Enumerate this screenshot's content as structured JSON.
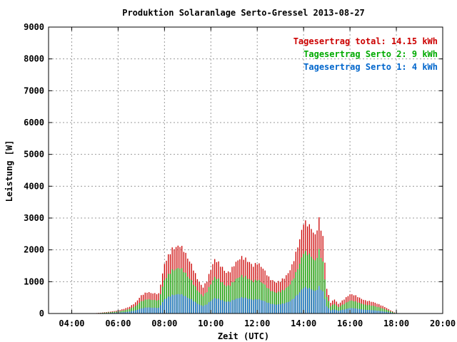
{
  "chart_data": {
    "type": "bar",
    "title": "Produktion Solaranlage Serto-Gressel 2013-08-27",
    "xlabel": "Zeit (UTC)",
    "ylabel": "Leistung [W]",
    "ylim": [
      0,
      9000
    ],
    "yticks": [
      "0",
      "1000",
      "2000",
      "3000",
      "4000",
      "5000",
      "6000",
      "7000",
      "8000",
      "9000"
    ],
    "xlim": [
      "03:00",
      "20:00"
    ],
    "xticks": [
      "04:00",
      "06:00",
      "08:00",
      "10:00",
      "12:00",
      "14:00",
      "16:00",
      "18:00",
      "20:00"
    ],
    "grid": true,
    "legend_position": "top-right",
    "legend": [
      {
        "text": "Tagesertrag total: 14.15 kWh",
        "color": "#cc0000"
      },
      {
        "text": "Tagesertrag Serto 2: 9 kWh",
        "color": "#00aa00"
      },
      {
        "text": "Tagesertrag Serto 1: 4 kWh",
        "color": "#0066cc"
      }
    ],
    "stacking": "overlaid bars per 5-minute interval (total behind, Serto 2 middle, Serto 1 front)",
    "series": [
      {
        "name": "Tagesertrag total: 14.15 kWh",
        "color": "#cc0000",
        "points": [
          [
            "05:00",
            10
          ],
          [
            "05:15",
            25
          ],
          [
            "05:30",
            45
          ],
          [
            "05:45",
            70
          ],
          [
            "06:00",
            100
          ],
          [
            "06:15",
            150
          ],
          [
            "06:30",
            220
          ],
          [
            "06:45",
            350
          ],
          [
            "07:00",
            580
          ],
          [
            "07:15",
            680
          ],
          [
            "07:30",
            640
          ],
          [
            "07:45",
            620
          ],
          [
            "08:00",
            1550
          ],
          [
            "08:10",
            1800
          ],
          [
            "08:20",
            2000
          ],
          [
            "08:30",
            2050
          ],
          [
            "08:40",
            2100
          ],
          [
            "08:50",
            1950
          ],
          [
            "09:00",
            1700
          ],
          [
            "09:10",
            1500
          ],
          [
            "09:20",
            1200
          ],
          [
            "09:30",
            950
          ],
          [
            "09:40",
            800
          ],
          [
            "09:50",
            1000
          ],
          [
            "10:00",
            1350
          ],
          [
            "10:10",
            1650
          ],
          [
            "10:20",
            1550
          ],
          [
            "10:30",
            1400
          ],
          [
            "10:40",
            1250
          ],
          [
            "10:50",
            1300
          ],
          [
            "11:00",
            1500
          ],
          [
            "11:10",
            1650
          ],
          [
            "11:20",
            1750
          ],
          [
            "11:30",
            1700
          ],
          [
            "11:40",
            1600
          ],
          [
            "11:50",
            1500
          ],
          [
            "12:00",
            1600
          ],
          [
            "12:10",
            1500
          ],
          [
            "12:20",
            1350
          ],
          [
            "12:30",
            1150
          ],
          [
            "12:40",
            1050
          ],
          [
            "12:50",
            1000
          ],
          [
            "13:00",
            1050
          ],
          [
            "13:10",
            1150
          ],
          [
            "13:20",
            1300
          ],
          [
            "13:30",
            1550
          ],
          [
            "13:40",
            1950
          ],
          [
            "13:50",
            2400
          ],
          [
            "14:00",
            2950
          ],
          [
            "14:10",
            2900
          ],
          [
            "14:20",
            2750
          ],
          [
            "14:30",
            2500
          ],
          [
            "14:40",
            3000
          ],
          [
            "14:50",
            2450
          ],
          [
            "15:00",
            800
          ],
          [
            "15:10",
            350
          ],
          [
            "15:20",
            450
          ],
          [
            "15:30",
            300
          ],
          [
            "15:40",
            400
          ],
          [
            "15:50",
            500
          ],
          [
            "16:00",
            600
          ],
          [
            "16:10",
            580
          ],
          [
            "16:20",
            520
          ],
          [
            "16:30",
            450
          ],
          [
            "16:40",
            400
          ],
          [
            "16:50",
            380
          ],
          [
            "17:00",
            350
          ],
          [
            "17:15",
            280
          ],
          [
            "17:30",
            200
          ],
          [
            "17:45",
            100
          ],
          [
            "18:00",
            0
          ]
        ]
      },
      {
        "name": "Tagesertrag Serto 2: 9 kWh",
        "color": "#00aa00",
        "points": [
          [
            "05:00",
            7
          ],
          [
            "05:15",
            17
          ],
          [
            "05:30",
            30
          ],
          [
            "05:45",
            47
          ],
          [
            "06:00",
            67
          ],
          [
            "06:15",
            100
          ],
          [
            "06:30",
            147
          ],
          [
            "06:45",
            234
          ],
          [
            "07:00",
            389
          ],
          [
            "07:15",
            456
          ],
          [
            "07:30",
            429
          ],
          [
            "07:45",
            415
          ],
          [
            "08:00",
            1039
          ],
          [
            "08:10",
            1206
          ],
          [
            "08:20",
            1340
          ],
          [
            "08:30",
            1374
          ],
          [
            "08:40",
            1407
          ],
          [
            "08:50",
            1307
          ],
          [
            "09:00",
            1139
          ],
          [
            "09:10",
            1005
          ],
          [
            "09:20",
            804
          ],
          [
            "09:30",
            637
          ],
          [
            "09:40",
            536
          ],
          [
            "09:50",
            670
          ],
          [
            "10:00",
            905
          ],
          [
            "10:10",
            1106
          ],
          [
            "10:20",
            1039
          ],
          [
            "10:30",
            938
          ],
          [
            "10:40",
            838
          ],
          [
            "10:50",
            871
          ],
          [
            "11:00",
            1005
          ],
          [
            "11:10",
            1106
          ],
          [
            "11:20",
            1173
          ],
          [
            "11:30",
            1139
          ],
          [
            "11:40",
            1072
          ],
          [
            "11:50",
            1005
          ],
          [
            "12:00",
            1072
          ],
          [
            "12:10",
            1005
          ],
          [
            "12:20",
            905
          ],
          [
            "12:30",
            771
          ],
          [
            "12:40",
            704
          ],
          [
            "12:50",
            670
          ],
          [
            "13:00",
            704
          ],
          [
            "13:10",
            771
          ],
          [
            "13:20",
            871
          ],
          [
            "13:30",
            1039
          ],
          [
            "13:40",
            1307
          ],
          [
            "13:50",
            1608
          ],
          [
            "14:00",
            1977
          ],
          [
            "14:10",
            1943
          ],
          [
            "14:20",
            1843
          ],
          [
            "14:30",
            1675
          ],
          [
            "14:40",
            2010
          ],
          [
            "14:50",
            1642
          ],
          [
            "15:00",
            536
          ],
          [
            "15:10",
            235
          ],
          [
            "15:20",
            302
          ],
          [
            "15:30",
            201
          ],
          [
            "15:40",
            268
          ],
          [
            "15:50",
            335
          ],
          [
            "16:00",
            402
          ],
          [
            "16:10",
            389
          ],
          [
            "16:20",
            348
          ],
          [
            "16:30",
            302
          ],
          [
            "16:40",
            268
          ],
          [
            "16:50",
            255
          ],
          [
            "17:00",
            235
          ],
          [
            "17:15",
            188
          ],
          [
            "17:30",
            134
          ],
          [
            "17:45",
            67
          ],
          [
            "18:00",
            0
          ]
        ]
      },
      {
        "name": "Tagesertrag Serto 1: 4 kWh",
        "color": "#0066cc",
        "points": [
          [
            "05:00",
            3
          ],
          [
            "05:15",
            8
          ],
          [
            "05:30",
            13
          ],
          [
            "05:45",
            20
          ],
          [
            "06:00",
            29
          ],
          [
            "06:15",
            43
          ],
          [
            "06:30",
            63
          ],
          [
            "06:45",
            100
          ],
          [
            "07:00",
            166
          ],
          [
            "07:15",
            194
          ],
          [
            "07:30",
            183
          ],
          [
            "07:45",
            177
          ],
          [
            "08:00",
            443
          ],
          [
            "08:10",
            514
          ],
          [
            "08:20",
            571
          ],
          [
            "08:30",
            586
          ],
          [
            "08:40",
            600
          ],
          [
            "08:50",
            557
          ],
          [
            "09:00",
            486
          ],
          [
            "09:10",
            429
          ],
          [
            "09:20",
            343
          ],
          [
            "09:30",
            271
          ],
          [
            "09:40",
            229
          ],
          [
            "09:50",
            286
          ],
          [
            "10:00",
            386
          ],
          [
            "10:10",
            471
          ],
          [
            "10:20",
            443
          ],
          [
            "10:30",
            400
          ],
          [
            "10:40",
            357
          ],
          [
            "10:50",
            371
          ],
          [
            "11:00",
            429
          ],
          [
            "11:10",
            471
          ],
          [
            "11:20",
            500
          ],
          [
            "11:30",
            486
          ],
          [
            "11:40",
            457
          ],
          [
            "11:50",
            429
          ],
          [
            "12:00",
            457
          ],
          [
            "12:10",
            429
          ],
          [
            "12:20",
            386
          ],
          [
            "12:30",
            329
          ],
          [
            "12:40",
            300
          ],
          [
            "12:50",
            286
          ],
          [
            "13:00",
            300
          ],
          [
            "13:10",
            329
          ],
          [
            "13:20",
            371
          ],
          [
            "13:30",
            443
          ],
          [
            "13:40",
            557
          ],
          [
            "13:50",
            686
          ],
          [
            "14:00",
            843
          ],
          [
            "14:10",
            829
          ],
          [
            "14:20",
            786
          ],
          [
            "14:30",
            714
          ],
          [
            "14:40",
            857
          ],
          [
            "14:50",
            700
          ],
          [
            "15:00",
            229
          ],
          [
            "15:10",
            100
          ],
          [
            "15:20",
            129
          ],
          [
            "15:30",
            86
          ],
          [
            "15:40",
            114
          ],
          [
            "15:50",
            143
          ],
          [
            "16:00",
            171
          ],
          [
            "16:10",
            166
          ],
          [
            "16:20",
            149
          ],
          [
            "16:30",
            129
          ],
          [
            "16:40",
            114
          ],
          [
            "16:50",
            109
          ],
          [
            "17:00",
            100
          ],
          [
            "17:15",
            80
          ],
          [
            "17:30",
            57
          ],
          [
            "17:45",
            29
          ],
          [
            "18:00",
            0
          ]
        ]
      }
    ]
  }
}
